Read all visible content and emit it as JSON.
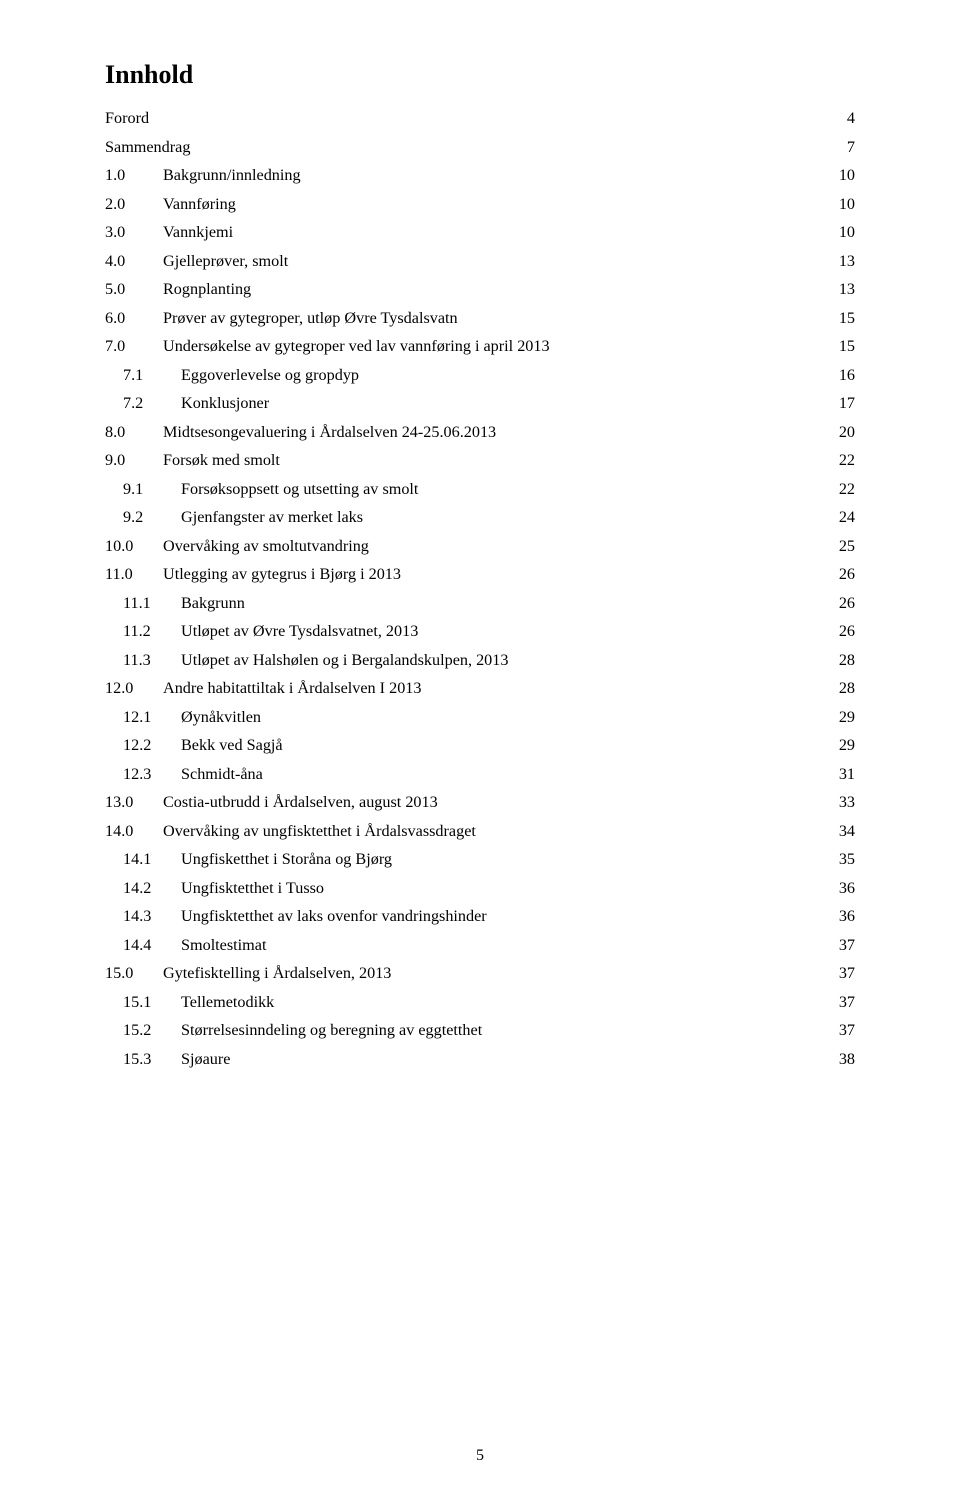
{
  "title": "Innhold",
  "page_number": "5",
  "toc": [
    {
      "num": "",
      "indent": 0,
      "text": "Forord",
      "page": "4"
    },
    {
      "num": "",
      "indent": 0,
      "text": "Sammendrag",
      "page": "7"
    },
    {
      "num": "1.0",
      "indent": 1,
      "text": "Bakgrunn/innledning",
      "page": "10"
    },
    {
      "num": "2.0",
      "indent": 1,
      "text": "Vannføring",
      "page": "10"
    },
    {
      "num": "3.0",
      "indent": 1,
      "text": "Vannkjemi",
      "page": "10"
    },
    {
      "num": "4.0",
      "indent": 1,
      "text": "Gjelleprøver, smolt",
      "page": "13"
    },
    {
      "num": "5.0",
      "indent": 1,
      "text": "Rognplanting",
      "page": "13"
    },
    {
      "num": "6.0",
      "indent": 1,
      "text": "Prøver av gytegroper, utløp Øvre Tysdalsvatn",
      "page": "15"
    },
    {
      "num": "7.0",
      "indent": 1,
      "text": "Undersøkelse av gytegroper ved lav vannføring i april 2013",
      "page": "15"
    },
    {
      "num": "7.1",
      "indent": 2,
      "text": "Eggoverlevelse og gropdyp",
      "page": "16"
    },
    {
      "num": "7.2",
      "indent": 2,
      "text": "Konklusjoner",
      "page": "17"
    },
    {
      "num": "8.0",
      "indent": 1,
      "text": "Midtsesongevaluering i Årdalselven 24-25.06.2013",
      "page": "20"
    },
    {
      "num": "9.0",
      "indent": 1,
      "text": "Forsøk med smolt",
      "page": "22"
    },
    {
      "num": "9.1",
      "indent": 2,
      "text": "Forsøksoppsett og utsetting av smolt",
      "page": "22"
    },
    {
      "num": "9.2",
      "indent": 2,
      "text": "Gjenfangster av merket laks",
      "page": "24"
    },
    {
      "num": "10.0",
      "indent": 1,
      "text": "Overvåking av smoltutvandring",
      "page": "25"
    },
    {
      "num": "11.0",
      "indent": 1,
      "text": "Utlegging av gytegrus i Bjørg i 2013",
      "page": "26"
    },
    {
      "num": "11.1",
      "indent": 2,
      "text": "Bakgrunn",
      "page": "26"
    },
    {
      "num": "11.2",
      "indent": 2,
      "text": "Utløpet av Øvre Tysdalsvatnet, 2013",
      "page": "26"
    },
    {
      "num": "11.3",
      "indent": 2,
      "text": "Utløpet av Halshølen og i Bergalandskulpen, 2013",
      "page": "28"
    },
    {
      "num": "12.0",
      "indent": 1,
      "text": "Andre habitattiltak i Årdalselven I 2013",
      "page": "28"
    },
    {
      "num": "12.1",
      "indent": 2,
      "text": "Øynåkvitlen",
      "page": "29"
    },
    {
      "num": "12.2",
      "indent": 2,
      "text": "Bekk ved Sagjå",
      "page": "29"
    },
    {
      "num": "12.3",
      "indent": 2,
      "text": "Schmidt-åna",
      "page": "31"
    },
    {
      "num": "13.0",
      "indent": 1,
      "text": "Costia-utbrudd i Årdalselven, august 2013",
      "page": "33"
    },
    {
      "num": "14.0",
      "indent": 1,
      "text": "Overvåking av ungfisktetthet i Årdalsvassdraget",
      "page": "34"
    },
    {
      "num": "14.1",
      "indent": 2,
      "text": "Ungfisketthet i Storåna og Bjørg",
      "page": "35"
    },
    {
      "num": "14.2",
      "indent": 2,
      "text": "Ungfisktetthet i Tusso",
      "page": "36"
    },
    {
      "num": "14.3",
      "indent": 2,
      "text": "Ungfisktetthet av laks ovenfor vandringshinder",
      "page": "36"
    },
    {
      "num": "14.4",
      "indent": 2,
      "text": "Smoltestimat",
      "page": "37"
    },
    {
      "num": "15.0",
      "indent": 1,
      "text": "Gytefisktelling i Årdalselven, 2013",
      "page": "37"
    },
    {
      "num": "15.1",
      "indent": 2,
      "text": "Tellemetodikk",
      "page": "37"
    },
    {
      "num": "15.2",
      "indent": 2,
      "text": "Størrelsesinndeling og beregning av eggtetthet",
      "page": "37"
    },
    {
      "num": "15.3",
      "indent": 2,
      "text": "Sjøaure",
      "page": "38"
    }
  ]
}
